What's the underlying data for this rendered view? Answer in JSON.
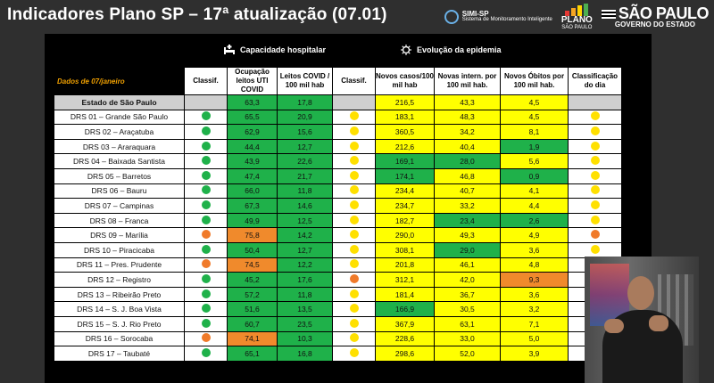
{
  "title": "Indicadores Plano SP – 17ª atualização (07.01)",
  "logos": {
    "simi": "SIMI-SP",
    "simi_sub": "Sistema de Monitoramento Inteligente",
    "plano": "PLANO",
    "plano_sub": "SÃO PAULO",
    "sp": "SÃO PAULO",
    "sp_sub": "GOVERNO DO ESTADO"
  },
  "sections": {
    "hospital": "Capacidade hospitalar",
    "epidemia": "Evolução da epidemia"
  },
  "headers": {
    "date": "Dados de 07/janeiro",
    "classif1": "Classif.",
    "uti": "Ocupação leitos UTI COVID",
    "leitos": "Leitos COVID / 100 mil hab",
    "classif2": "Classif.",
    "casos": "Novos casos/100 mil hab",
    "intern": "Novas intern. por 100 mil hab.",
    "obitos": "Novos Óbitos por 100 mil hab.",
    "classdia": "Classificação do dia"
  },
  "colors": {
    "green": "#1fb14a",
    "yellow": "#ffff00",
    "orange": "#f08a2c"
  },
  "rows": [
    {
      "name": "Estado de São Paulo",
      "c1": "",
      "uti": "63,3",
      "uti_c": "g",
      "leitos": "17,8",
      "leitos_c": "g",
      "c2": "",
      "casos": "216,5",
      "casos_c": "y",
      "intern": "43,3",
      "intern_c": "y",
      "obitos": "4,5",
      "obitos_c": "y",
      "dia": ""
    },
    {
      "name": "DRS 01 – Grande São Paulo",
      "c1": "g",
      "uti": "65,5",
      "uti_c": "g",
      "leitos": "20,9",
      "leitos_c": "g",
      "c2": "y",
      "casos": "183,1",
      "casos_c": "y",
      "intern": "48,3",
      "intern_c": "y",
      "obitos": "4,5",
      "obitos_c": "y",
      "dia": "y"
    },
    {
      "name": "DRS 02 – Araçatuba",
      "c1": "g",
      "uti": "62,9",
      "uti_c": "g",
      "leitos": "15,6",
      "leitos_c": "g",
      "c2": "y",
      "casos": "360,5",
      "casos_c": "y",
      "intern": "34,2",
      "intern_c": "y",
      "obitos": "8,1",
      "obitos_c": "y",
      "dia": "y"
    },
    {
      "name": "DRS 03 – Araraquara",
      "c1": "g",
      "uti": "44,4",
      "uti_c": "g",
      "leitos": "12,7",
      "leitos_c": "g",
      "c2": "y",
      "casos": "212,6",
      "casos_c": "y",
      "intern": "40,4",
      "intern_c": "y",
      "obitos": "1,9",
      "obitos_c": "g",
      "dia": "y"
    },
    {
      "name": "DRS 04 – Baixada Santista",
      "c1": "g",
      "uti": "43,9",
      "uti_c": "g",
      "leitos": "22,6",
      "leitos_c": "g",
      "c2": "y",
      "casos": "169,1",
      "casos_c": "g",
      "intern": "28,0",
      "intern_c": "g",
      "obitos": "5,6",
      "obitos_c": "y",
      "dia": "y"
    },
    {
      "name": "DRS 05 – Barretos",
      "c1": "g",
      "uti": "47,4",
      "uti_c": "g",
      "leitos": "21,7",
      "leitos_c": "g",
      "c2": "y",
      "casos": "174,1",
      "casos_c": "g",
      "intern": "46,8",
      "intern_c": "y",
      "obitos": "0,9",
      "obitos_c": "g",
      "dia": "y"
    },
    {
      "name": "DRS 06 – Bauru",
      "c1": "g",
      "uti": "66,0",
      "uti_c": "g",
      "leitos": "11,8",
      "leitos_c": "g",
      "c2": "y",
      "casos": "234,4",
      "casos_c": "y",
      "intern": "40,7",
      "intern_c": "y",
      "obitos": "4,1",
      "obitos_c": "y",
      "dia": "y"
    },
    {
      "name": "DRS 07 – Campinas",
      "c1": "g",
      "uti": "67,3",
      "uti_c": "g",
      "leitos": "14,6",
      "leitos_c": "g",
      "c2": "y",
      "casos": "234,7",
      "casos_c": "y",
      "intern": "33,2",
      "intern_c": "y",
      "obitos": "4,4",
      "obitos_c": "y",
      "dia": "y"
    },
    {
      "name": "DRS 08 – Franca",
      "c1": "g",
      "uti": "49,9",
      "uti_c": "g",
      "leitos": "12,5",
      "leitos_c": "g",
      "c2": "y",
      "casos": "182,7",
      "casos_c": "y",
      "intern": "23,4",
      "intern_c": "g",
      "obitos": "2,6",
      "obitos_c": "g",
      "dia": "y"
    },
    {
      "name": "DRS 09 – Marília",
      "c1": "o",
      "uti": "75,8",
      "uti_c": "o",
      "leitos": "14,2",
      "leitos_c": "g",
      "c2": "y",
      "casos": "290,0",
      "casos_c": "y",
      "intern": "49,3",
      "intern_c": "y",
      "obitos": "4,9",
      "obitos_c": "y",
      "dia": "o"
    },
    {
      "name": "DRS 10 – Piracicaba",
      "c1": "g",
      "uti": "50,4",
      "uti_c": "g",
      "leitos": "12,7",
      "leitos_c": "g",
      "c2": "y",
      "casos": "308,1",
      "casos_c": "y",
      "intern": "29,0",
      "intern_c": "g",
      "obitos": "3,6",
      "obitos_c": "y",
      "dia": "y"
    },
    {
      "name": "DRS 11 – Pres. Prudente",
      "c1": "o",
      "uti": "74,5",
      "uti_c": "o",
      "leitos": "12,2",
      "leitos_c": "g",
      "c2": "y",
      "casos": "201,8",
      "casos_c": "y",
      "intern": "46,1",
      "intern_c": "y",
      "obitos": "4,8",
      "obitos_c": "y",
      "dia": ""
    },
    {
      "name": "DRS 12 – Registro",
      "c1": "g",
      "uti": "45,2",
      "uti_c": "g",
      "leitos": "17,6",
      "leitos_c": "g",
      "c2": "o",
      "casos": "312,1",
      "casos_c": "y",
      "intern": "42,0",
      "intern_c": "y",
      "obitos": "9,3",
      "obitos_c": "o",
      "dia": ""
    },
    {
      "name": "DRS 13 – Ribeirão Preto",
      "c1": "g",
      "uti": "57,2",
      "uti_c": "g",
      "leitos": "11,8",
      "leitos_c": "g",
      "c2": "y",
      "casos": "181,4",
      "casos_c": "y",
      "intern": "36,7",
      "intern_c": "y",
      "obitos": "3,6",
      "obitos_c": "y",
      "dia": ""
    },
    {
      "name": "DRS 14 – S. J. Boa Vista",
      "c1": "g",
      "uti": "51,6",
      "uti_c": "g",
      "leitos": "13,5",
      "leitos_c": "g",
      "c2": "y",
      "casos": "166,9",
      "casos_c": "g",
      "intern": "30,5",
      "intern_c": "y",
      "obitos": "3,2",
      "obitos_c": "y",
      "dia": ""
    },
    {
      "name": "DRS 15 – S. J. Rio Preto",
      "c1": "g",
      "uti": "60,7",
      "uti_c": "g",
      "leitos": "23,5",
      "leitos_c": "g",
      "c2": "y",
      "casos": "367,9",
      "casos_c": "y",
      "intern": "63,1",
      "intern_c": "y",
      "obitos": "7,1",
      "obitos_c": "y",
      "dia": ""
    },
    {
      "name": "DRS 16 – Sorocaba",
      "c1": "o",
      "uti": "74,1",
      "uti_c": "o",
      "leitos": "10,3",
      "leitos_c": "g",
      "c2": "y",
      "casos": "228,6",
      "casos_c": "y",
      "intern": "33,0",
      "intern_c": "y",
      "obitos": "5,0",
      "obitos_c": "y",
      "dia": ""
    },
    {
      "name": "DRS 17 – Taubaté",
      "c1": "g",
      "uti": "65,1",
      "uti_c": "g",
      "leitos": "16,8",
      "leitos_c": "g",
      "c2": "y",
      "casos": "298,6",
      "casos_c": "y",
      "intern": "52,0",
      "intern_c": "y",
      "obitos": "3,9",
      "obitos_c": "y",
      "dia": ""
    }
  ]
}
